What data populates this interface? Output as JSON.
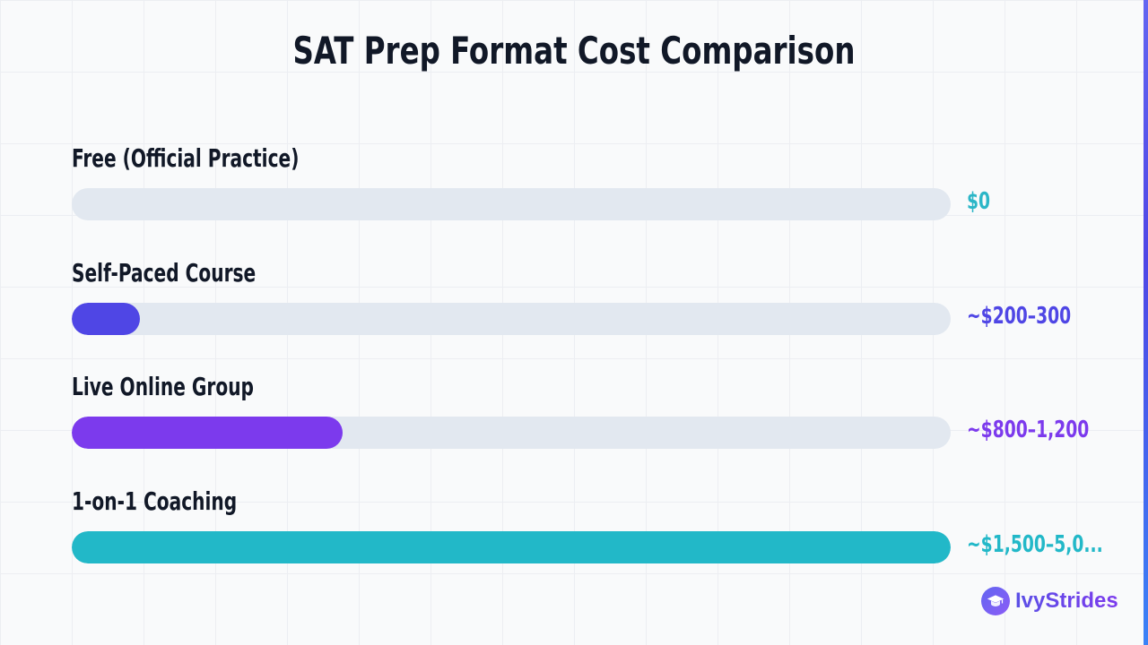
{
  "chart_data": {
    "type": "bar",
    "orientation": "horizontal",
    "title": "SAT Prep Format Cost Comparison",
    "categories": [
      "Free (Official Practice)",
      "Self-Paced Course",
      "Live Online Group",
      "1-on-1 Coaching"
    ],
    "values": [
      0,
      250,
      1000,
      3250
    ],
    "value_labels": [
      "$0",
      "~$200–300",
      "~$800–1,200",
      "~$1,500–5,0..."
    ],
    "colors": [
      "#2bb6c7",
      "#4f46e5",
      "#7c3aed",
      "#22b8c8"
    ],
    "xlim": [
      0,
      3250
    ],
    "grid": false,
    "legend": "none"
  },
  "colors": {
    "track": "#e2e8f0",
    "title": "#111827",
    "accent": "#4f46e5"
  },
  "brand": {
    "name": "IvyStrides",
    "icon": "graduation-cap-icon"
  }
}
